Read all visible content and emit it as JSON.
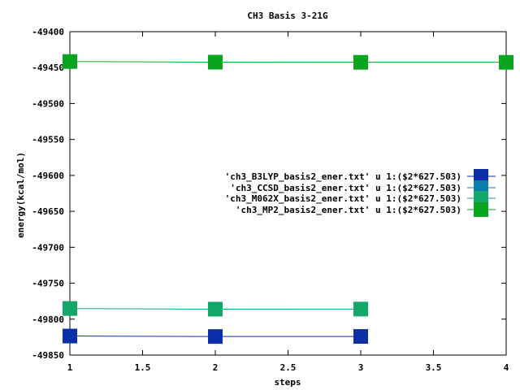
{
  "chart_data": {
    "type": "line",
    "title": "CH3 Basis 3-21G",
    "xlabel": "steps",
    "ylabel": "energy(kcal/mol)",
    "xlim": [
      1,
      4
    ],
    "ylim": [
      -49850,
      -49400
    ],
    "xticks": [
      "1",
      "1.5",
      "2",
      "2.5",
      "3",
      "3.5",
      "4"
    ],
    "yticks": [
      "-49400",
      "-49450",
      "-49500",
      "-49550",
      "-49600",
      "-49650",
      "-49700",
      "-49750",
      "-49800",
      "-49850"
    ],
    "grid": false,
    "legend_position": "right",
    "series": [
      {
        "name": "'ch3_B3LYP_basis2_ener.txt' u 1:($2*627.503)",
        "color": "#0a2fa8",
        "x": [
          1,
          2,
          3
        ],
        "y": [
          -49823.5,
          -49824.2,
          -49824.1
        ]
      },
      {
        "name": "'ch3_CCSD_basis2_ener.txt' u 1:($2*627.503)",
        "color": "#0b7fab",
        "x": [],
        "y": []
      },
      {
        "name": "'ch3_M062X_basis2_ener.txt' u 1:($2*627.503)",
        "color": "#12a86a",
        "x": [
          1,
          2,
          3
        ],
        "y": [
          -49785.2,
          -49786.1,
          -49786.0
        ]
      },
      {
        "name": "'ch3_MP2_basis2_ener.txt' u 1:($2*627.503)",
        "color": "#0aa51f",
        "x": [
          1,
          2,
          3,
          4
        ],
        "y": [
          -49441.5,
          -49442.4,
          -49442.6,
          -49442.6
        ]
      }
    ]
  }
}
